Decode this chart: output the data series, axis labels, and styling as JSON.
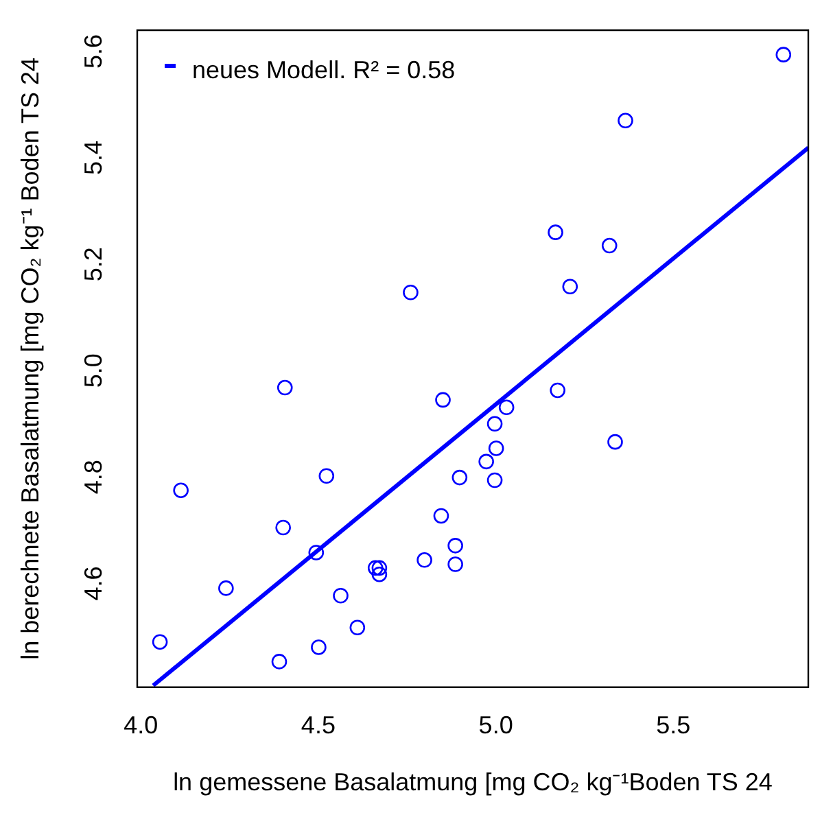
{
  "chart_data": {
    "type": "scatter",
    "xlabel": "ln gemessene Basalatmung [mg CO₂ kg⁻¹Boden TS 24",
    "ylabel": "ln berechnete Basalatmung [mg CO₂ kg⁻¹ Boden TS 24",
    "xlim": [
      3.99,
      5.88
    ],
    "ylim": [
      4.405,
      5.64
    ],
    "xticks": [
      {
        "value": 4,
        "label": "4.0"
      },
      4.5,
      {
        "value": 5,
        "label": "5.0"
      },
      5.5
    ],
    "yticks": [
      4.6,
      4.8,
      {
        "value": 5,
        "label": "5.0"
      },
      5.2,
      5.4,
      5.6
    ],
    "grid": false,
    "legend": "top left",
    "marker": "circle",
    "series": [
      {
        "color": "#0000ff",
        "x": [
          5.81,
          5.365,
          5.168,
          5.32,
          5.209,
          4.76,
          4.406,
          4.851,
          4.113,
          4.523,
          4.898,
          4.401,
          4.846,
          4.494,
          4.886,
          4.886,
          4.799,
          4.24,
          4.661,
          4.672,
          4.672,
          4.563,
          4.61,
          4.054,
          4.501,
          4.39,
          5.174,
          5.03,
          4.997,
          5.001,
          5.336,
          4.973,
          4.997
        ],
        "values": [
          5.594,
          5.47,
          5.26,
          5.235,
          5.158,
          5.147,
          4.968,
          4.945,
          4.775,
          4.802,
          4.799,
          4.705,
          4.727,
          4.658,
          4.671,
          4.636,
          4.644,
          4.591,
          4.629,
          4.629,
          4.617,
          4.577,
          4.517,
          4.49,
          4.48,
          4.453,
          4.963,
          4.931,
          4.9,
          4.854,
          4.866,
          4.829,
          4.794
        ]
      },
      {
        "type": "line",
        "name": "neues Modell. R² = 0.58",
        "color": "#0000ff",
        "marker": "none",
        "line_style": "solid",
        "x": [
          4.035,
          5.88
        ],
        "values": [
          4.408,
          5.419
        ]
      }
    ]
  }
}
